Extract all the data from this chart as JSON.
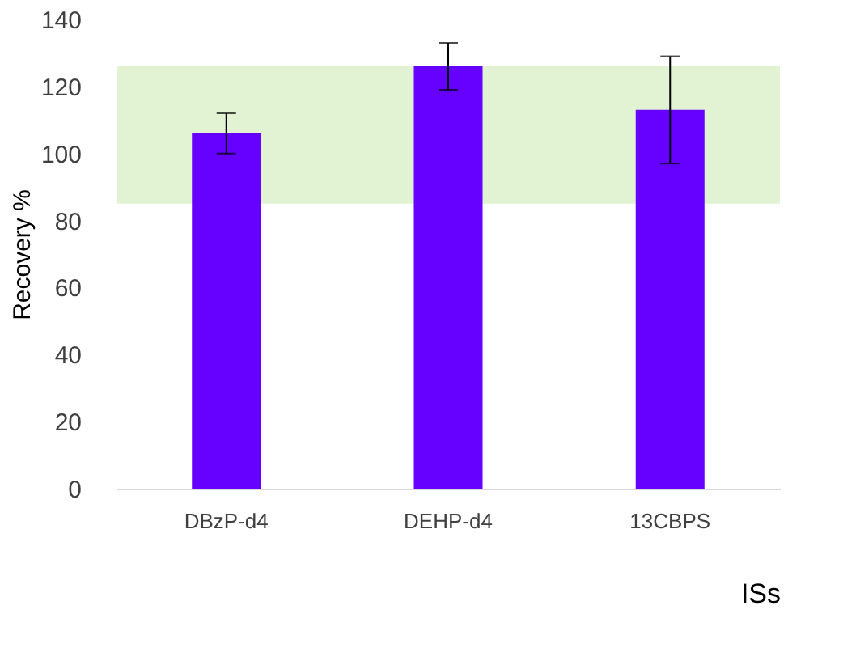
{
  "chart_data": {
    "type": "bar",
    "xlabel": "ISs",
    "ylabel": "Recovery %",
    "categories": [
      "DBzP-d4",
      "DEHP-d4",
      "13CBPS"
    ],
    "series": [
      {
        "color": "#6600ff",
        "values": [
          106,
          126,
          113
        ],
        "errors": [
          [
            100,
            112
          ],
          [
            119,
            133
          ],
          [
            97,
            129
          ]
        ]
      }
    ],
    "ylim": [
      0,
      140
    ],
    "yticks": [
      0,
      20,
      40,
      60,
      80,
      100,
      120,
      140
    ],
    "grid": false,
    "bands": [
      {
        "axis": "y",
        "from": 85,
        "to": 126,
        "color": "#e2f3d3"
      }
    ]
  }
}
